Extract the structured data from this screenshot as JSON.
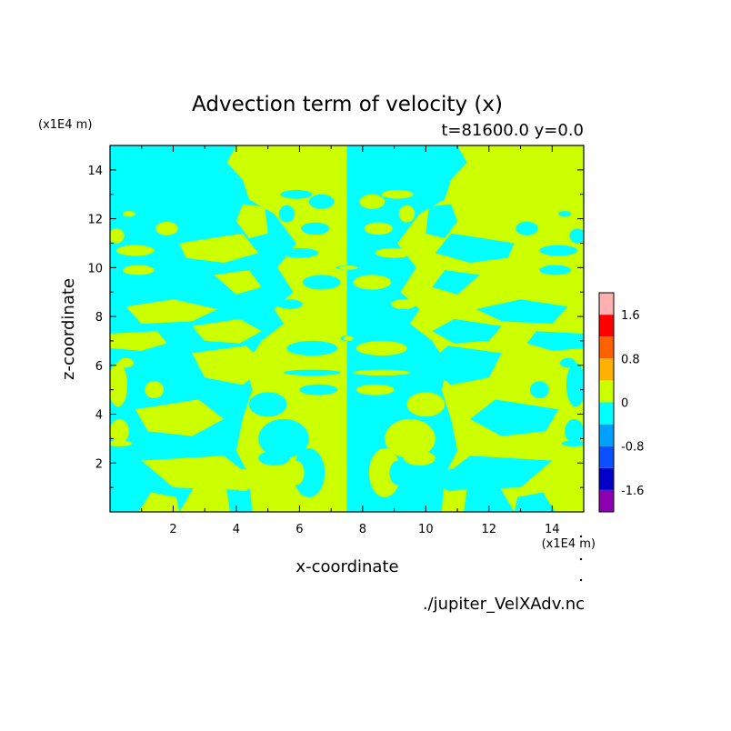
{
  "chart_data": {
    "type": "heatmap",
    "title": "Advection term of velocity (x)",
    "subtitle": "t=81600.0 y=0.0",
    "xlabel": "x-coordinate",
    "ylabel": "z-coordinate",
    "x_unit": "(x1E4 m)",
    "z_unit": "(x1E4 m)",
    "xlim": [
      0,
      15
    ],
    "ylim": [
      0,
      15
    ],
    "x_ticks": [
      2,
      4,
      6,
      8,
      10,
      12,
      14
    ],
    "y_ticks": [
      2,
      4,
      6,
      8,
      10,
      12,
      14
    ],
    "x_tick_labels": [
      "2",
      "4",
      "6",
      "8",
      "10",
      "12",
      "14"
    ],
    "y_tick_labels": [
      "2",
      "4",
      "6",
      "8",
      "10",
      "12",
      "14"
    ],
    "footer": "./jupiter_VelXAdv.nc",
    "colorbar": {
      "levels": [
        -2.0,
        -1.6,
        -1.2,
        -0.8,
        -0.4,
        0,
        0.4,
        0.8,
        1.2,
        1.6,
        2.0
      ],
      "colors": [
        "#8b00b0",
        "#0000c8",
        "#0a50ff",
        "#00a0ff",
        "#00ffff",
        "#ccff00",
        "#ffb000",
        "#ff6000",
        "#ff0000",
        "#ffb0b0"
      ],
      "tick_values": [
        1.6,
        0.8,
        0,
        -0.8,
        -1.6
      ],
      "tick_labels": [
        "1.6",
        "0.8",
        "0",
        "-0.8",
        "-1.6"
      ]
    },
    "field_colors": {
      "negative": "#00ffff",
      "positive": "#ccff00"
    },
    "mirror_axis_x": 7.5,
    "left_half_positive_regions": [
      {
        "type": "poly",
        "pts": [
          [
            4.0,
            15
          ],
          [
            7.5,
            15
          ],
          [
            7.5,
            0
          ],
          [
            4.5,
            0
          ],
          [
            4.4,
            1.5
          ],
          [
            4.0,
            2.5
          ],
          [
            4.2,
            3.8
          ],
          [
            4.5,
            5.0
          ],
          [
            4.3,
            6.0
          ],
          [
            4.8,
            7.0
          ],
          [
            5.5,
            7.7
          ],
          [
            5.2,
            8.3
          ],
          [
            5.8,
            9.0
          ],
          [
            5.3,
            10.0
          ],
          [
            5.9,
            11.0
          ],
          [
            5.2,
            12.2
          ],
          [
            4.4,
            12.8
          ],
          [
            4.2,
            13.6
          ],
          [
            3.7,
            14.3
          ]
        ]
      },
      {
        "type": "poly",
        "pts": [
          [
            2.6,
            6.5
          ],
          [
            4.3,
            6.8
          ],
          [
            5.0,
            6.0
          ],
          [
            4.2,
            5.2
          ],
          [
            3.0,
            5.5
          ]
        ]
      },
      {
        "type": "poly",
        "pts": [
          [
            0.8,
            4.2
          ],
          [
            2.8,
            4.6
          ],
          [
            3.6,
            3.8
          ],
          [
            2.6,
            3.1
          ],
          [
            1.2,
            3.3
          ]
        ]
      },
      {
        "type": "poly",
        "pts": [
          [
            1.0,
            2.1
          ],
          [
            3.6,
            2.3
          ],
          [
            4.4,
            1.5
          ],
          [
            4.0,
            0.9
          ],
          [
            2.0,
            1.0
          ]
        ]
      },
      {
        "type": "poly",
        "pts": [
          [
            0.9,
            0.0
          ],
          [
            2.2,
            0.0
          ],
          [
            2.1,
            0.6
          ],
          [
            1.3,
            0.8
          ]
        ]
      },
      {
        "type": "poly",
        "pts": [
          [
            2.2,
            0.0
          ],
          [
            3.8,
            0.0
          ],
          [
            3.7,
            0.9
          ],
          [
            2.7,
            1.1
          ]
        ]
      },
      {
        "type": "poly",
        "pts": [
          [
            4.2,
            12.6
          ],
          [
            4.9,
            12.5
          ],
          [
            5.0,
            11.4
          ],
          [
            4.4,
            11.2
          ],
          [
            4.0,
            11.9
          ]
        ]
      },
      {
        "type": "poly",
        "pts": [
          [
            2.2,
            11.0
          ],
          [
            4.2,
            11.4
          ],
          [
            4.7,
            10.6
          ],
          [
            3.6,
            10.2
          ],
          [
            2.4,
            10.4
          ]
        ]
      },
      {
        "type": "poly",
        "pts": [
          [
            3.3,
            9.7
          ],
          [
            4.4,
            9.9
          ],
          [
            4.8,
            9.2
          ],
          [
            4.0,
            8.9
          ]
        ]
      },
      {
        "type": "poly",
        "pts": [
          [
            0.5,
            8.4
          ],
          [
            2.0,
            8.7
          ],
          [
            3.4,
            8.3
          ],
          [
            2.6,
            7.8
          ],
          [
            1.0,
            7.7
          ]
        ]
      },
      {
        "type": "poly",
        "pts": [
          [
            2.6,
            7.6
          ],
          [
            4.1,
            7.9
          ],
          [
            4.8,
            7.4
          ],
          [
            4.1,
            6.9
          ],
          [
            3.0,
            7.0
          ]
        ]
      },
      {
        "type": "poly",
        "pts": [
          [
            0.0,
            7.3
          ],
          [
            1.5,
            7.4
          ],
          [
            1.8,
            6.9
          ],
          [
            1.0,
            6.6
          ],
          [
            0.0,
            6.7
          ]
        ]
      },
      {
        "type": "ellipse",
        "cx": 0.8,
        "cy": 10.7,
        "rx": 0.6,
        "ry": 0.22
      },
      {
        "type": "ellipse",
        "cx": 0.9,
        "cy": 9.9,
        "rx": 0.5,
        "ry": 0.2
      },
      {
        "type": "ellipse",
        "cx": 1.8,
        "cy": 11.6,
        "rx": 0.35,
        "ry": 0.28
      },
      {
        "type": "ellipse",
        "cx": 0.2,
        "cy": 11.3,
        "rx": 0.25,
        "ry": 0.3
      },
      {
        "type": "ellipse",
        "cx": 0.6,
        "cy": 12.2,
        "rx": 0.2,
        "ry": 0.12
      },
      {
        "type": "ellipse",
        "cx": 0.25,
        "cy": 5.2,
        "rx": 0.3,
        "ry": 0.9
      },
      {
        "type": "ellipse",
        "cx": 0.3,
        "cy": 3.3,
        "rx": 0.3,
        "ry": 0.5
      },
      {
        "type": "ellipse",
        "cx": 0.3,
        "cy": 2.8,
        "rx": 0.4,
        "ry": 0.12
      },
      {
        "type": "ellipse",
        "cx": 1.4,
        "cy": 5.0,
        "rx": 0.3,
        "ry": 0.35
      },
      {
        "type": "ellipse",
        "cx": 0.5,
        "cy": 6.1,
        "rx": 0.25,
        "ry": 0.2
      }
    ],
    "left_half_negative_regions": [
      {
        "type": "ellipse",
        "cx": 5.9,
        "cy": 13.0,
        "rx": 0.5,
        "ry": 0.18
      },
      {
        "type": "ellipse",
        "cx": 6.7,
        "cy": 12.7,
        "rx": 0.4,
        "ry": 0.3
      },
      {
        "type": "ellipse",
        "cx": 5.6,
        "cy": 12.2,
        "rx": 0.25,
        "ry": 0.35
      },
      {
        "type": "ellipse",
        "cx": 6.5,
        "cy": 11.6,
        "rx": 0.45,
        "ry": 0.25
      },
      {
        "type": "ellipse",
        "cx": 6.0,
        "cy": 10.6,
        "rx": 0.6,
        "ry": 0.2
      },
      {
        "type": "ellipse",
        "cx": 6.7,
        "cy": 9.4,
        "rx": 0.6,
        "ry": 0.3
      },
      {
        "type": "ellipse",
        "cx": 5.7,
        "cy": 8.5,
        "rx": 0.4,
        "ry": 0.2
      },
      {
        "type": "ellipse",
        "cx": 6.4,
        "cy": 6.7,
        "rx": 0.8,
        "ry": 0.3
      },
      {
        "type": "ellipse",
        "cx": 6.4,
        "cy": 5.7,
        "rx": 0.9,
        "ry": 0.12
      },
      {
        "type": "ellipse",
        "cx": 6.6,
        "cy": 5.0,
        "rx": 0.6,
        "ry": 0.22
      },
      {
        "type": "ellipse",
        "cx": 5.0,
        "cy": 4.4,
        "rx": 0.6,
        "ry": 0.5
      },
      {
        "type": "ellipse",
        "cx": 5.5,
        "cy": 3.0,
        "rx": 0.8,
        "ry": 0.8
      },
      {
        "type": "ellipse",
        "cx": 6.3,
        "cy": 1.6,
        "rx": 0.5,
        "ry": 1.0
      },
      {
        "type": "ellipse",
        "cx": 5.2,
        "cy": 2.2,
        "rx": 0.5,
        "ry": 0.3
      },
      {
        "type": "ellipse",
        "cx": 7.45,
        "cy": 10.0,
        "rx": 0.3,
        "ry": 0.08
      },
      {
        "type": "ellipse",
        "cx": 7.45,
        "cy": 7.1,
        "rx": 0.15,
        "ry": 0.1
      }
    ],
    "left_half_positive_islands": [
      {
        "type": "ellipse",
        "cx": 4.2,
        "cy": 1.3,
        "rx": 0.35,
        "ry": 0.45
      },
      {
        "type": "ellipse",
        "cx": 5.9,
        "cy": 1.6,
        "rx": 0.25,
        "ry": 0.5
      }
    ]
  }
}
